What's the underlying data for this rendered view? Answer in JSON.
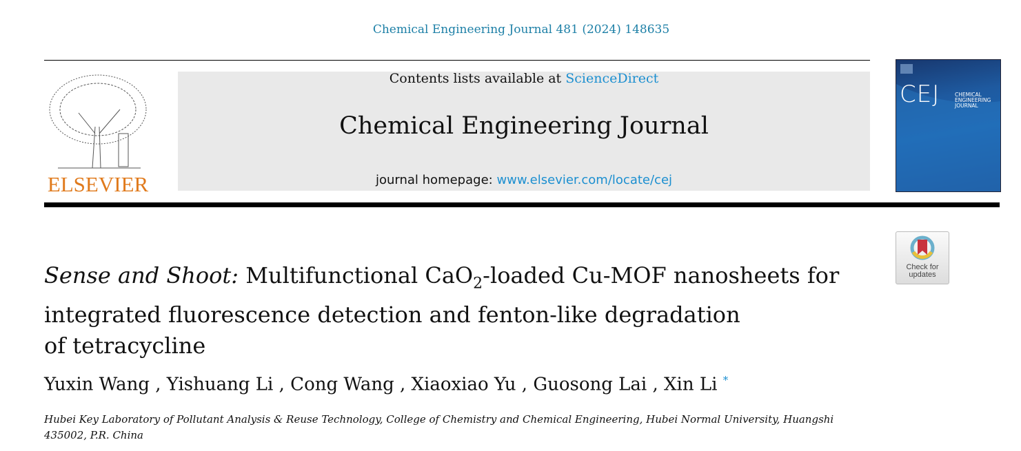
{
  "citation": "Chemical Engineering Journal 481 (2024) 148635",
  "publisher_logo": "ELSEVIER",
  "masthead": {
    "contents_prefix": "Contents lists available at ",
    "contents_link": "ScienceDirect",
    "journal_name": "Chemical Engineering Journal",
    "homepage_prefix": "journal homepage: ",
    "homepage_link": "www.elsevier.com/locate/cej"
  },
  "cover": {
    "abbrev": "CEJ",
    "line1": "CHEMICAL",
    "line2": "ENGINEERING",
    "line3": "JOURNAL"
  },
  "check_updates": {
    "line1": "Check for",
    "line2": "updates"
  },
  "article": {
    "title_italic": "Sense and Shoot:",
    "title_part1": " Multifunctional CaO",
    "title_sub": "2",
    "title_part2": "-loaded Cu-MOF nanosheets for",
    "title_line2": "integrated fluorescence detection and fenton-like degradation",
    "title_line3": "of tetracycline",
    "authors": "Yuxin Wang , Yishuang Li , Cong Wang , Xiaoxiao Yu , Guosong Lai , Xin Li",
    "corresponding_mark": "*",
    "affiliation": "Hubei Key Laboratory of Pollutant Analysis & Reuse Technology, College of Chemistry and Chemical Engineering, Hubei Normal University, Huangshi 435002, P.R. China"
  },
  "colors": {
    "link": "#1c8fd0",
    "citation": "#1c7fa6",
    "elsevier_orange": "#e07a1c"
  }
}
